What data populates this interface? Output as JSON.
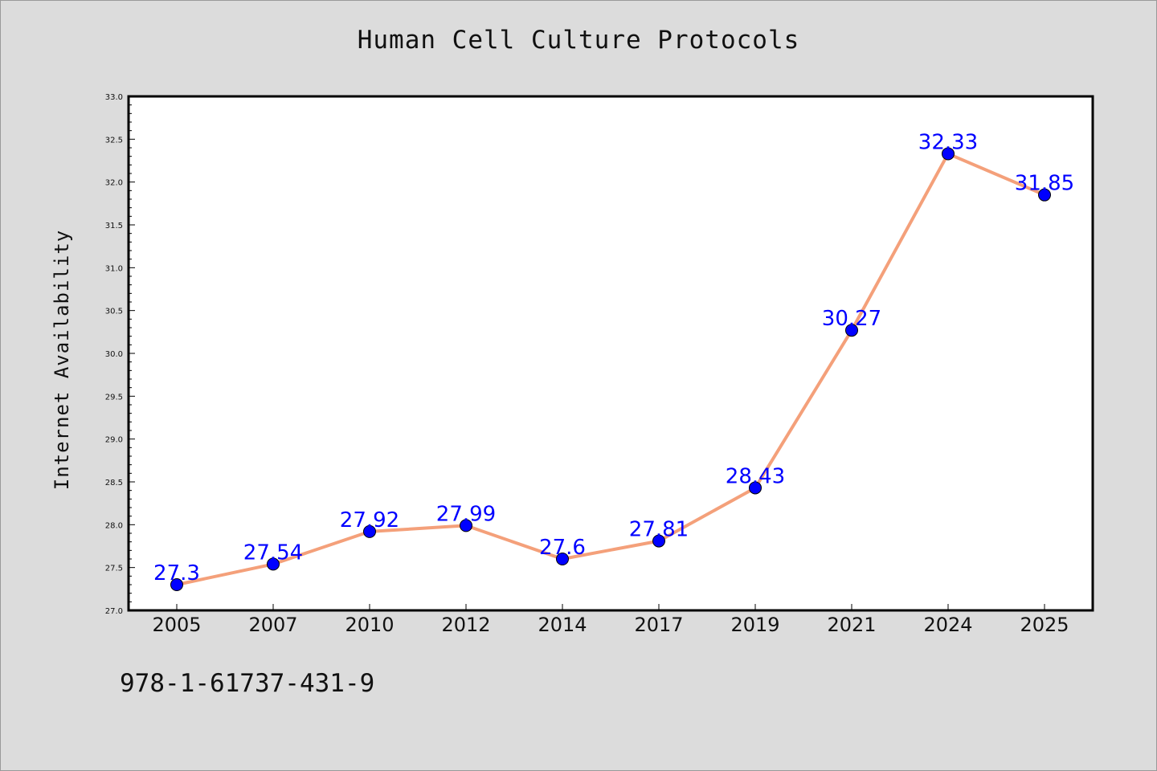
{
  "chart_data": {
    "type": "line",
    "title": "Human Cell Culture Protocols",
    "xlabel": "",
    "ylabel": "Internet Availability",
    "categories": [
      "2005",
      "2007",
      "2010",
      "2012",
      "2014",
      "2017",
      "2019",
      "2021",
      "2024",
      "2025"
    ],
    "values": [
      27.3,
      27.54,
      27.92,
      27.99,
      27.6,
      27.81,
      28.43,
      30.27,
      32.33,
      31.85
    ],
    "value_labels": [
      "27.3",
      "27.54",
      "27.92",
      "27.99",
      "27.6",
      "27.81",
      "28.43",
      "30.27",
      "32.33",
      "31.85"
    ],
    "ylim": [
      27.0,
      33.0
    ],
    "yticks": [
      "27.0",
      "27.5",
      "28.0",
      "28.5",
      "29.0",
      "29.5",
      "30.0",
      "30.5",
      "31.0",
      "31.5",
      "32.0",
      "32.5",
      "33.0"
    ],
    "grid": false,
    "line_color": "#f4a07a",
    "marker_color": "#0000ff",
    "label_color": "#0000ff"
  },
  "footnote": "978-1-61737-431-9"
}
